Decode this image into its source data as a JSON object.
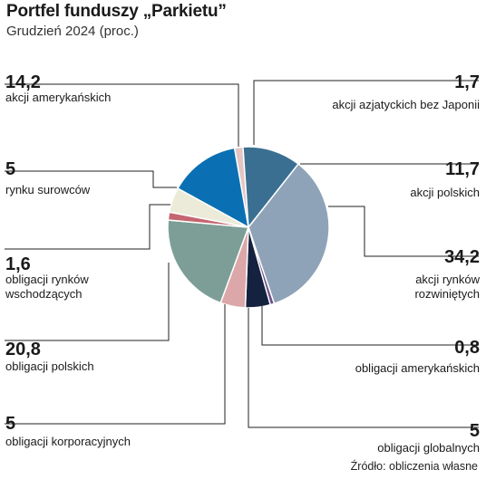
{
  "header": {
    "title": "Portfel funduszy „Parkietu”",
    "subtitle": "Grudzień 2024 (proc.)"
  },
  "footer": {
    "source": "Źródło: obliczenia własne"
  },
  "chart_data": {
    "type": "pie",
    "title": "Portfel funduszy „Parkietu”",
    "subtitle": "Grudzień 2024 (proc.)",
    "unit": "proc.",
    "slices": [
      {
        "value": 1.7,
        "value_label": "1,7",
        "label": "akcji azjatyckich bez Japonii",
        "color": "#e3c5c4"
      },
      {
        "value": 11.7,
        "value_label": "11,7",
        "label": "akcji polskich",
        "color": "#3a6f92"
      },
      {
        "value": 34.2,
        "value_label": "34,2",
        "label": "akcji rynków rozwiniętych",
        "color": "#8fa3b8"
      },
      {
        "value": 0.8,
        "value_label": "0,8",
        "label": "obligacji amerykańskich",
        "color": "#6b4f86"
      },
      {
        "value": 5,
        "value_label": "5",
        "label": "obligacji globalnych",
        "color": "#14223f"
      },
      {
        "value": 5,
        "value_label": "5",
        "label": "obligacji korporacyjnych",
        "color": "#dca7a8"
      },
      {
        "value": 20.8,
        "value_label": "20,8",
        "label": "obligacji polskich",
        "color": "#7c9e96"
      },
      {
        "value": 1.6,
        "value_label": "1,6",
        "label": "obligacji rynków wschodzących",
        "color": "#c46570"
      },
      {
        "value": 5,
        "value_label": "5",
        "label": "rynku surowców",
        "color": "#ecebd9"
      },
      {
        "value": 14.2,
        "value_label": "14,2",
        "label": "akcji amerykańskich",
        "color": "#0a70b3"
      }
    ]
  }
}
